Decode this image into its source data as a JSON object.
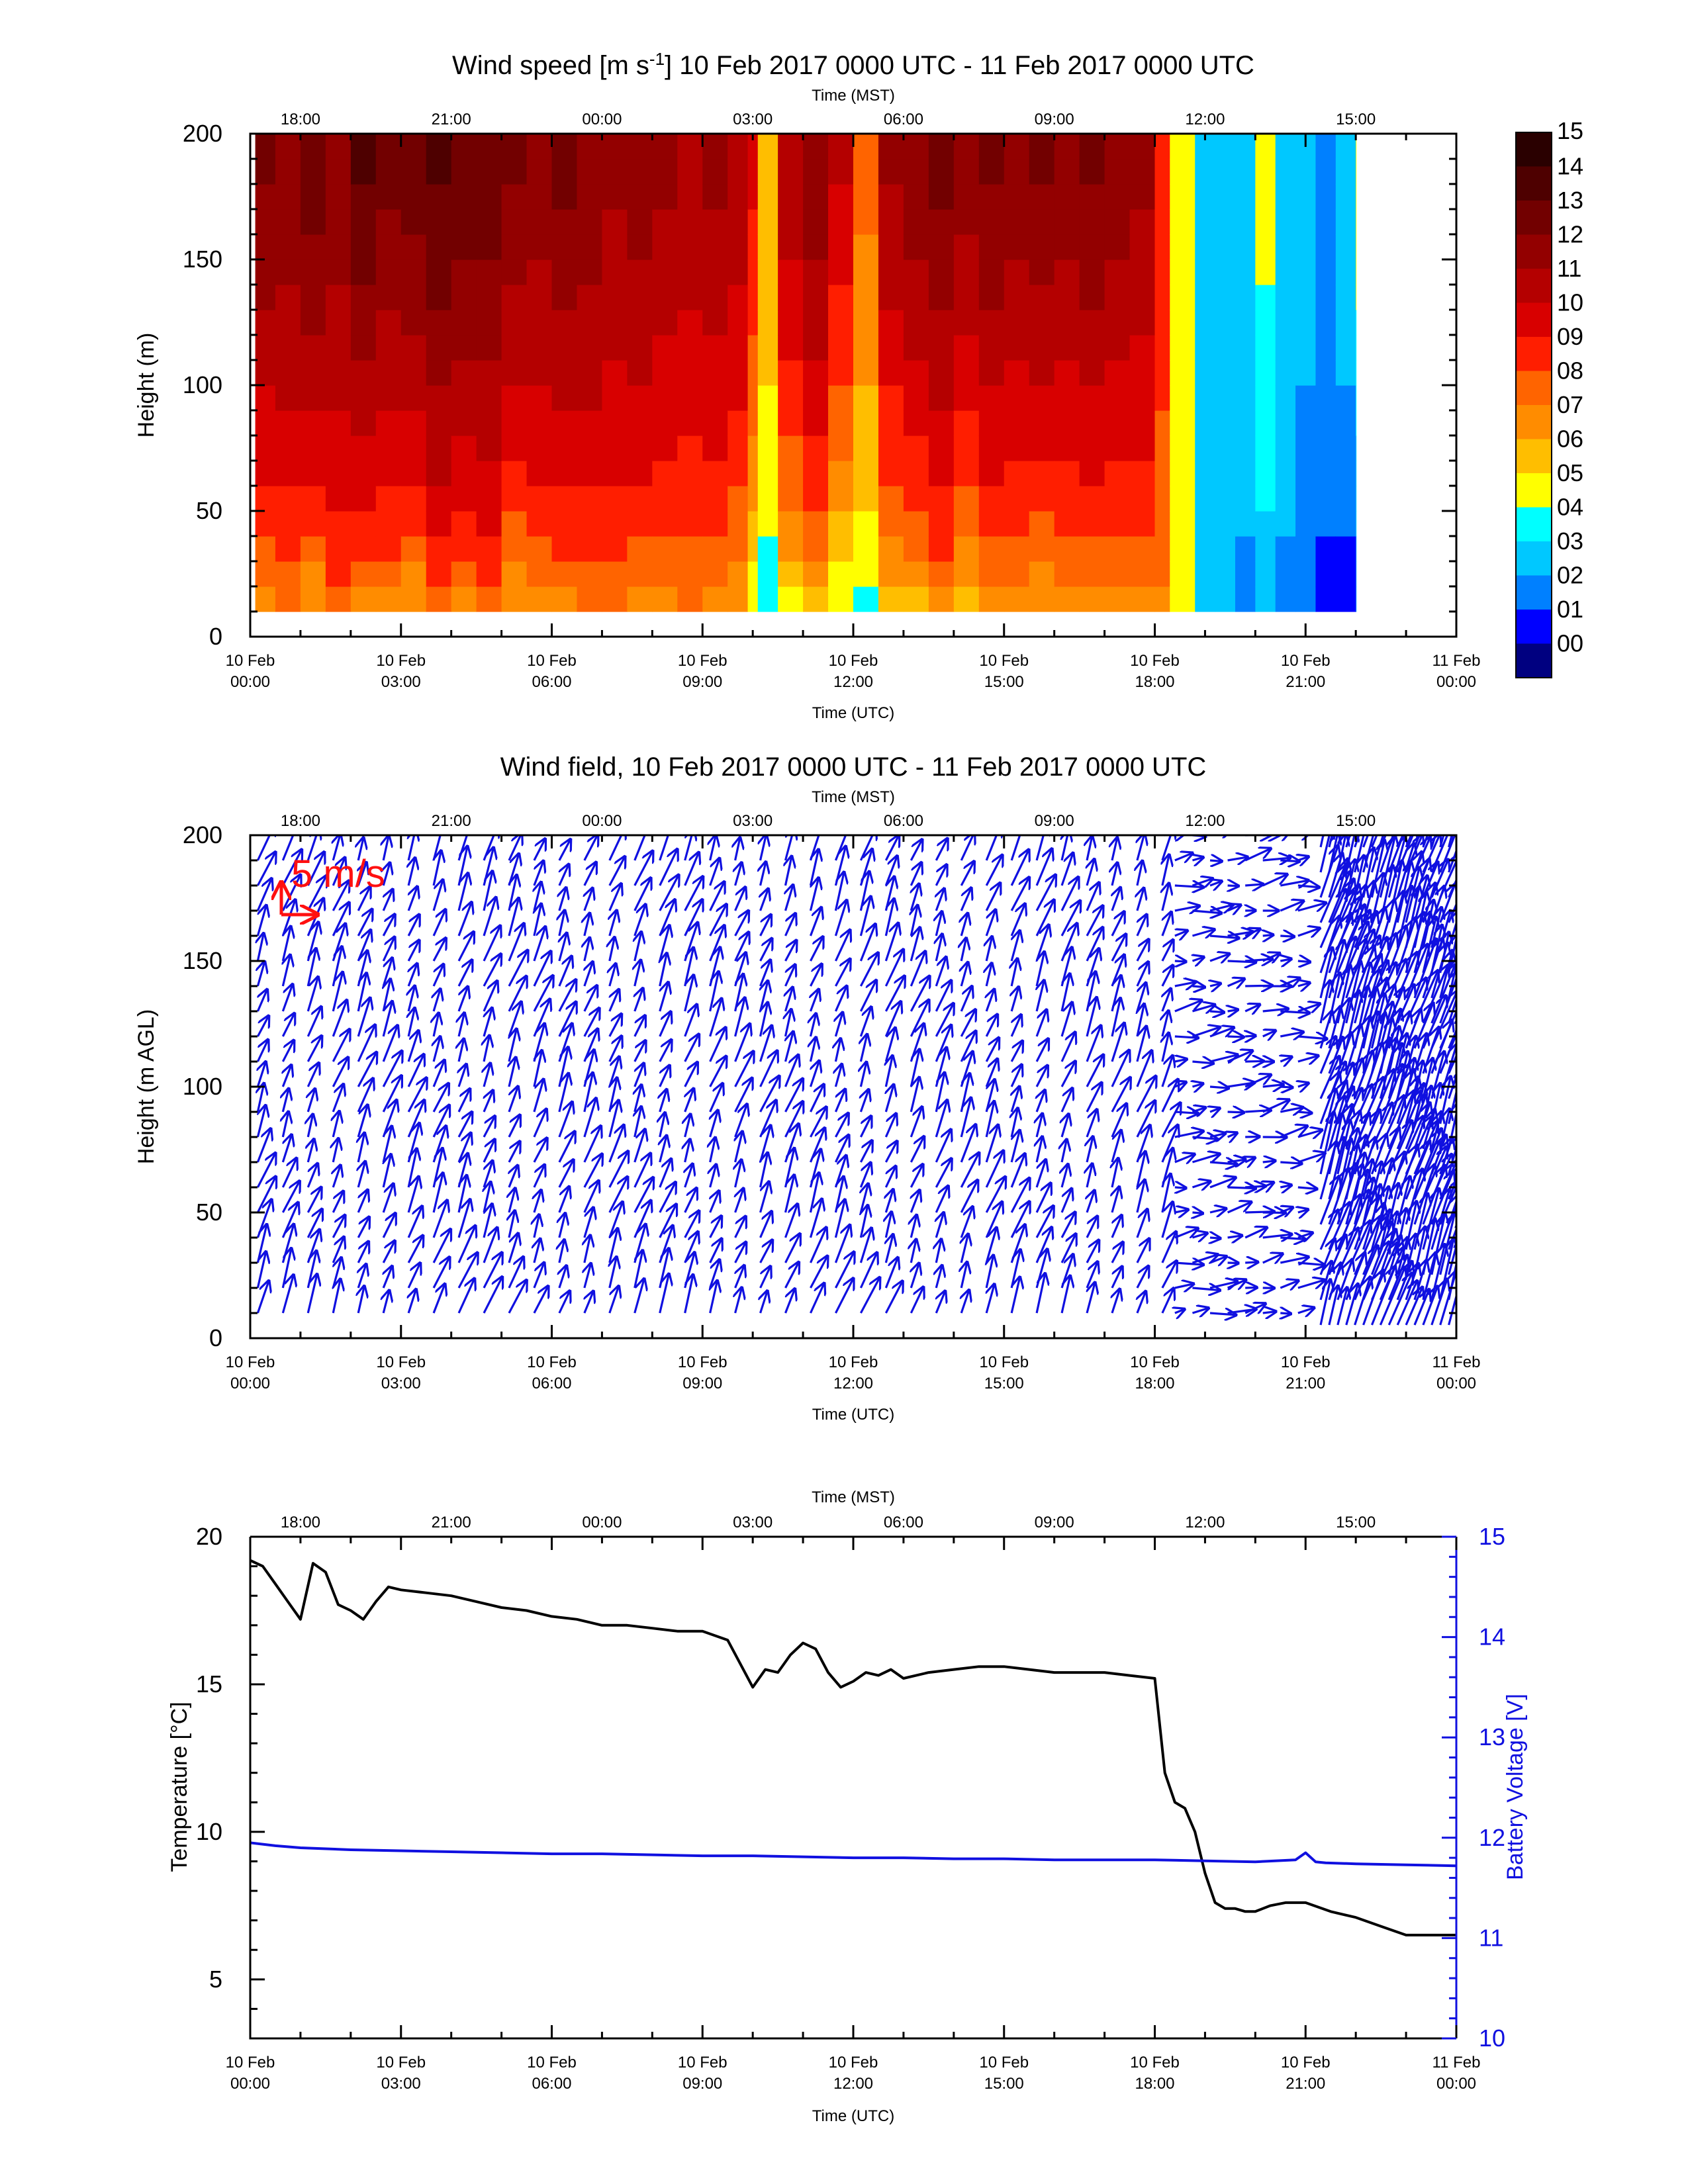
{
  "chart_data": [
    {
      "type": "heatmap",
      "title": "Wind speed [m s$^{-1}$] 10 Feb 2017 0000 UTC - 11 Feb 2017 0000 UTC",
      "title_main": "Wind speed [m s",
      "title_sup": "-1",
      "title_rest": "] 10 Feb 2017 0000 UTC - 11 Feb 2017 0000 UTC",
      "xlabel": "Time (UTC)",
      "x2label": "Time (MST)",
      "ylabel": "Height (m)",
      "xlim_hours": [
        0,
        24
      ],
      "ylim": [
        0,
        200
      ],
      "y_ticks": [
        "0",
        "50",
        "100",
        "150",
        "200"
      ],
      "x_ticks_utc": [
        [
          "10 Feb",
          "00:00"
        ],
        [
          "10 Feb",
          "03:00"
        ],
        [
          "10 Feb",
          "06:00"
        ],
        [
          "10 Feb",
          "09:00"
        ],
        [
          "10 Feb",
          "12:00"
        ],
        [
          "10 Feb",
          "15:00"
        ],
        [
          "10 Feb",
          "18:00"
        ],
        [
          "10 Feb",
          "21:00"
        ],
        [
          "11 Feb",
          "00:00"
        ]
      ],
      "x_ticks_mst": [
        "18:00",
        "21:00",
        "00:00",
        "03:00",
        "06:00",
        "09:00",
        "12:00",
        "15:00"
      ],
      "colorbar_labels": [
        "15",
        "14",
        "13",
        "12",
        "11",
        "10",
        "09",
        "08",
        "07",
        "06",
        "05",
        "04",
        "03",
        "02",
        "01",
        "00"
      ],
      "colorbar_colors": [
        "#2a0000",
        "#4e0000",
        "#720000",
        "#930000",
        "#b40000",
        "#d80000",
        "#ff1e00",
        "#ff6400",
        "#ff8c00",
        "#ffbe00",
        "#ffff00",
        "#00ffff",
        "#00c8ff",
        "#0080ff",
        "#0000ff",
        "#000080"
      ],
      "data_coverage_hours": [
        0.1,
        22.0
      ],
      "height_range_m": [
        10,
        200
      ],
      "columns_hours": [
        0.1,
        0.5,
        1.0,
        1.5,
        2.0,
        2.5,
        3.0,
        3.5,
        4.0,
        4.5,
        5.0,
        5.5,
        6.0,
        6.5,
        7.0,
        7.5,
        8.0,
        8.5,
        9.0,
        9.5,
        9.9,
        10.1,
        10.5,
        11.0,
        11.5,
        12.0,
        12.5,
        13.0,
        13.5,
        14.0,
        14.5,
        15.0,
        15.5,
        16.0,
        16.5,
        17.0,
        17.5,
        18.0,
        18.3,
        18.8,
        19.2,
        19.6,
        20.0,
        20.4,
        20.8,
        21.2,
        21.6,
        22.0
      ],
      "speed_at_10m": [
        6.5,
        7.5,
        6.0,
        8.0,
        6.5,
        7.0,
        6.0,
        7.5,
        7.0,
        7.5,
        6.0,
        7.0,
        7.0,
        7.5,
        7.5,
        7.0,
        7.0,
        7.5,
        7.0,
        6.5,
        4.5,
        4.0,
        5.0,
        6.0,
        4.0,
        4.0,
        5.5,
        6.0,
        7.0,
        5.5,
        6.5,
        6.5,
        6.0,
        6.5,
        6.5,
        6.5,
        7.0,
        7.5,
        5.0,
        4.0,
        3.5,
        2.5,
        3.0,
        2.5,
        2.0,
        1.5,
        1.0,
        1.5
      ],
      "speed_at_200m": [
        13.5,
        13.0,
        14.0,
        13.0,
        14.5,
        13.5,
        14.0,
        14.5,
        14.0,
        14.0,
        13.5,
        13.0,
        13.5,
        13.0,
        12.5,
        13.0,
        12.5,
        12.0,
        12.5,
        12.0,
        10.5,
        7.0,
        12.0,
        13.0,
        11.5,
        8.5,
        12.5,
        13.0,
        13.5,
        13.0,
        13.5,
        13.0,
        13.5,
        13.0,
        13.5,
        13.0,
        12.5,
        10.0,
        5.0,
        3.5,
        3.0,
        4.0,
        5.5,
        4.0,
        3.5,
        3.0,
        4.0,
        6.0
      ]
    },
    {
      "type": "quiver",
      "title": "Wind field, 10 Feb 2017 0000 UTC - 11 Feb 2017 0000 UTC",
      "xlabel": "Time (UTC)",
      "x2label": "Time (MST)",
      "ylabel": "Height (m AGL)",
      "xlim_hours": [
        0,
        24
      ],
      "ylim": [
        0,
        200
      ],
      "y_ticks": [
        "0",
        "50",
        "100",
        "150",
        "200"
      ],
      "x_ticks_utc": [
        [
          "10 Feb",
          "00:00"
        ],
        [
          "10 Feb",
          "03:00"
        ],
        [
          "10 Feb",
          "06:00"
        ],
        [
          "10 Feb",
          "09:00"
        ],
        [
          "10 Feb",
          "12:00"
        ],
        [
          "10 Feb",
          "15:00"
        ],
        [
          "10 Feb",
          "18:00"
        ],
        [
          "10 Feb",
          "21:00"
        ],
        [
          "11 Feb",
          "00:00"
        ]
      ],
      "x_ticks_mst": [
        "18:00",
        "21:00",
        "00:00",
        "03:00",
        "06:00",
        "09:00",
        "12:00",
        "15:00"
      ],
      "reference_vector": "5 m/s",
      "arrow_color": "#1010e0",
      "reference_color": "#ff1010",
      "regimes": [
        {
          "from_hours": 0.1,
          "to_hours": 18.3,
          "direction": "toward north-northeast",
          "speed_ms": 10
        },
        {
          "from_hours": 18.3,
          "to_hours": 21.2,
          "direction": "variable, toward east",
          "speed_ms": 3
        },
        {
          "from_hours": 21.2,
          "to_hours": 23.8,
          "direction": "toward north-northeast",
          "speed_ms": 8
        }
      ]
    },
    {
      "type": "line",
      "title": "",
      "xlabel": "Time (UTC)",
      "x2label": "Time (MST)",
      "ylabel": "Temperature [°C]",
      "y2label": "Battery Voltage [V]",
      "xlim_hours": [
        0,
        24
      ],
      "ylim": [
        3,
        20
      ],
      "y2lim": [
        10,
        15
      ],
      "y_ticks": [
        "5",
        "10",
        "15",
        "20"
      ],
      "y2_ticks": [
        "10",
        "11",
        "12",
        "13",
        "14",
        "15"
      ],
      "x_ticks_utc": [
        [
          "10 Feb",
          "00:00"
        ],
        [
          "10 Feb",
          "03:00"
        ],
        [
          "10 Feb",
          "06:00"
        ],
        [
          "10 Feb",
          "09:00"
        ],
        [
          "10 Feb",
          "12:00"
        ],
        [
          "10 Feb",
          "15:00"
        ],
        [
          "10 Feb",
          "18:00"
        ],
        [
          "10 Feb",
          "21:00"
        ],
        [
          "11 Feb",
          "00:00"
        ]
      ],
      "x_ticks_mst": [
        "18:00",
        "21:00",
        "00:00",
        "03:00",
        "06:00",
        "09:00",
        "12:00",
        "15:00"
      ],
      "series": [
        {
          "name": "Temperature",
          "axis": "left",
          "color": "#000000",
          "x": [
            0.0,
            0.25,
            0.5,
            0.75,
            1.0,
            1.25,
            1.5,
            1.75,
            2.0,
            2.25,
            2.5,
            2.75,
            3.0,
            3.5,
            4.0,
            4.5,
            5.0,
            5.5,
            6.0,
            6.5,
            7.0,
            7.5,
            8.0,
            8.5,
            9.0,
            9.5,
            10.0,
            10.25,
            10.5,
            10.75,
            11.0,
            11.25,
            11.5,
            11.75,
            12.0,
            12.25,
            12.5,
            12.75,
            13.0,
            13.5,
            14.0,
            14.5,
            15.0,
            15.5,
            16.0,
            16.5,
            17.0,
            17.5,
            18.0,
            18.2,
            18.4,
            18.6,
            18.8,
            19.0,
            19.2,
            19.4,
            19.6,
            19.8,
            20.0,
            20.3,
            20.6,
            21.0,
            21.5,
            22.0,
            22.5,
            23.0,
            23.5,
            24.0
          ],
          "values": [
            19.2,
            19.0,
            18.4,
            17.8,
            17.2,
            19.1,
            18.8,
            17.7,
            17.5,
            17.2,
            17.8,
            18.3,
            18.2,
            18.1,
            18.0,
            17.8,
            17.6,
            17.5,
            17.3,
            17.2,
            17.0,
            17.0,
            16.9,
            16.8,
            16.8,
            16.5,
            14.9,
            15.5,
            15.4,
            16.0,
            16.4,
            16.2,
            15.4,
            14.9,
            15.1,
            15.4,
            15.3,
            15.5,
            15.2,
            15.4,
            15.5,
            15.6,
            15.6,
            15.5,
            15.4,
            15.4,
            15.4,
            15.3,
            15.2,
            12.0,
            11.0,
            10.8,
            10.0,
            8.6,
            7.6,
            7.4,
            7.4,
            7.3,
            7.3,
            7.5,
            7.6,
            7.6,
            7.3,
            7.1,
            6.8,
            6.5,
            6.5,
            6.5
          ]
        },
        {
          "name": "Battery Voltage",
          "axis": "right",
          "color": "#1010e0",
          "x": [
            0.0,
            0.5,
            1.0,
            2.0,
            3.0,
            4.0,
            5.0,
            6.0,
            7.0,
            8.0,
            9.0,
            10.0,
            11.0,
            12.0,
            13.0,
            14.0,
            15.0,
            16.0,
            17.0,
            18.0,
            19.0,
            20.0,
            20.8,
            21.0,
            21.2,
            21.4,
            22.0,
            23.0,
            24.0
          ],
          "values": [
            11.95,
            11.92,
            11.9,
            11.88,
            11.87,
            11.86,
            11.85,
            11.84,
            11.84,
            11.83,
            11.82,
            11.82,
            11.81,
            11.8,
            11.8,
            11.79,
            11.79,
            11.78,
            11.78,
            11.78,
            11.77,
            11.76,
            11.78,
            11.85,
            11.76,
            11.75,
            11.74,
            11.73,
            11.72
          ]
        }
      ]
    }
  ]
}
